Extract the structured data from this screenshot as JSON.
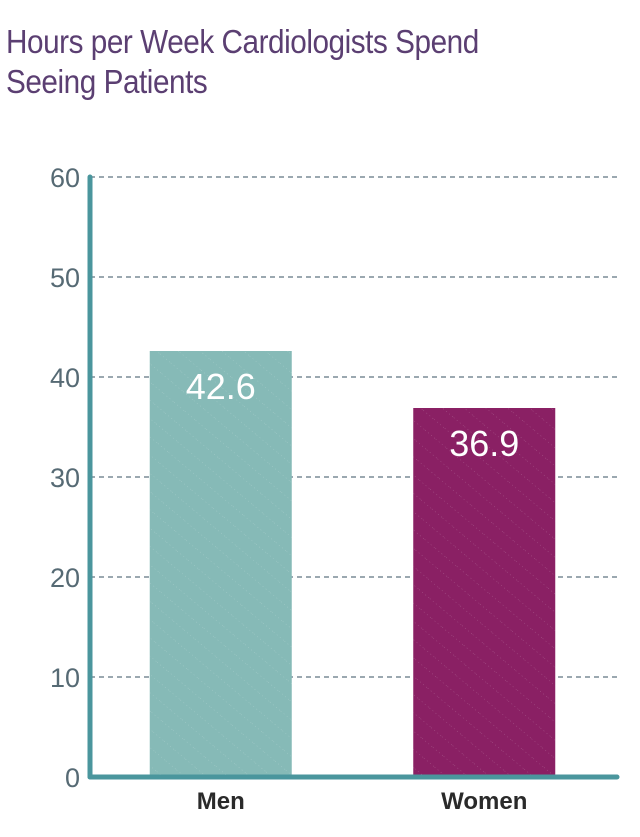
{
  "chart_data": {
    "type": "bar",
    "title": "Hours per Week Cardiologists Spend Seeing Patients",
    "categories": [
      "Men",
      "Women"
    ],
    "values": [
      42.6,
      36.9
    ],
    "data_labels": [
      "42.6",
      "36.9"
    ],
    "colors": [
      "#86bab7",
      "#8a2064"
    ],
    "xlabel": "",
    "ylabel": "",
    "ylim": [
      0,
      60
    ],
    "yticks": [
      0,
      10,
      20,
      30,
      40,
      50,
      60
    ],
    "ytick_labels": [
      "0",
      "10",
      "20",
      "30",
      "40",
      "50",
      "60"
    ],
    "grid": true,
    "axis_color": "#4a969d",
    "grid_color": "#7a8c96"
  }
}
